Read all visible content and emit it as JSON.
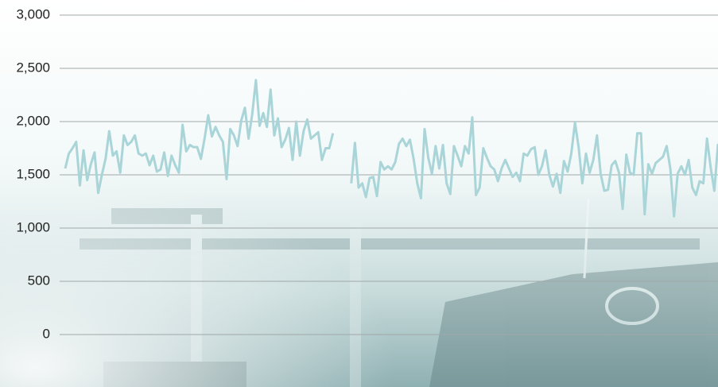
{
  "chart_data": {
    "type": "line",
    "ylim": [
      0,
      3000
    ],
    "yticks": [
      0,
      500,
      {
        "value": 1000,
        "label": "1,000"
      },
      {
        "value": 1500,
        "label": "1,500"
      },
      {
        "value": 2000,
        "label": "2,000"
      },
      {
        "value": 2500,
        "label": "2,500"
      },
      {
        "value": 3000,
        "label": "3,000"
      }
    ],
    "grid": true,
    "series": [
      {
        "color": "#a9d5d9",
        "values": [
          1560,
          1700,
          1750,
          1810,
          1400,
          1730,
          1450,
          1600,
          1710,
          1330,
          1500,
          1650,
          1910,
          1680,
          1720,
          1520,
          1870,
          1780,
          1810,
          1870,
          1700,
          1680,
          1700,
          1590,
          1680,
          1530,
          1550,
          1710,
          1490,
          1680,
          1590,
          1520,
          1970,
          1720,
          1780,
          1760,
          1760,
          1650,
          1840,
          2060,
          1860,
          1950,
          1870,
          1810,
          1460,
          1930,
          1870,
          1770,
          2010,
          2130,
          1840,
          2070,
          2390,
          1960,
          2080,
          1950,
          2300,
          1870,
          2030,
          1760,
          1830,
          1940,
          1640,
          2000,
          1680,
          1910,
          2020,
          1840,
          1870,
          1900,
          1640,
          1750,
          1750,
          1890,
          null,
          null,
          null,
          null,
          1420,
          1800,
          1380,
          1420,
          1290,
          1470,
          1480,
          1300,
          1620,
          1550,
          1580,
          1550,
          1620,
          1790,
          1840,
          1770,
          1830,
          1650,
          1420,
          1280,
          1930,
          1660,
          1510,
          1770,
          1560,
          1780,
          1420,
          1320,
          1770,
          1680,
          1580,
          1770,
          1700,
          2040,
          1310,
          1380,
          1750,
          1660,
          1580,
          1550,
          1440,
          1560,
          1640,
          1560,
          1480,
          1520,
          1440,
          1700,
          1680,
          1740,
          1760,
          1500,
          1580,
          1730,
          1500,
          1390,
          1510,
          1330,
          1630,
          1530,
          1700,
          1990,
          1760,
          1420,
          1700,
          1520,
          1640,
          1870,
          1510,
          1350,
          1360,
          1590,
          1630,
          1520,
          1180,
          1690,
          1520,
          1500,
          1890,
          1890,
          1130,
          1600,
          1510,
          1610,
          1640,
          1670,
          1770,
          1560,
          1110,
          1510,
          1580,
          1500,
          1640,
          1380,
          1310,
          1440,
          1420,
          1840,
          1570,
          1350,
          1790
        ]
      }
    ]
  }
}
